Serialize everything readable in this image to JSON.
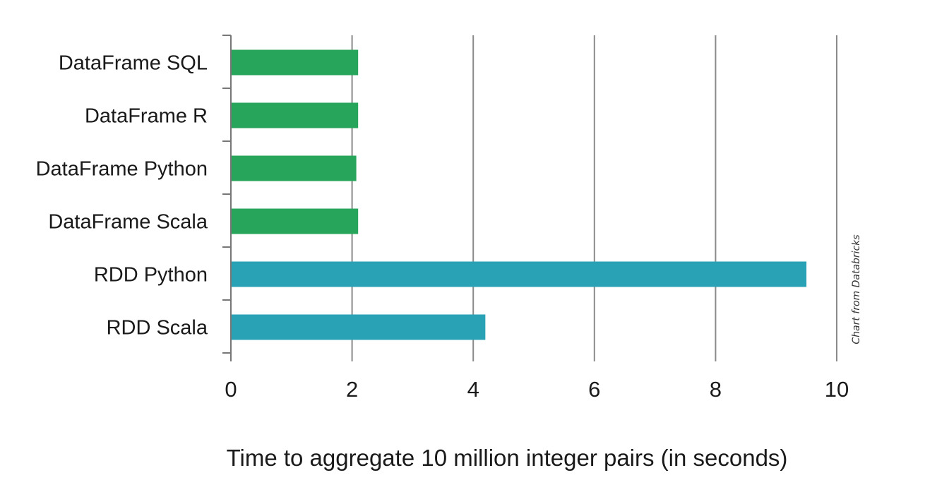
{
  "chart_data": {
    "type": "bar",
    "orientation": "horizontal",
    "categories": [
      "DataFrame SQL",
      "DataFrame R",
      "DataFrame Python",
      "DataFrame Scala",
      "RDD Python",
      "RDD Scala"
    ],
    "values": [
      2.1,
      2.1,
      2.07,
      2.1,
      9.5,
      4.2
    ],
    "bar_colors": [
      "#27a55a",
      "#27a55a",
      "#27a55a",
      "#27a55a",
      "#2aa2b5",
      "#2aa2b5"
    ],
    "xlabel": "Time to aggregate 10 million integer pairs (in seconds)",
    "ylabel": "",
    "xlim": [
      0,
      10
    ],
    "xticks": [
      "0",
      "2",
      "4",
      "6",
      "8",
      "10"
    ],
    "grid": "vertical",
    "annotation": "Chart from Databricks"
  },
  "colors": {
    "dataframe": "#27a55a",
    "rdd": "#2aa2b5",
    "axis": "#777777",
    "grid": "#8a8a8a"
  }
}
